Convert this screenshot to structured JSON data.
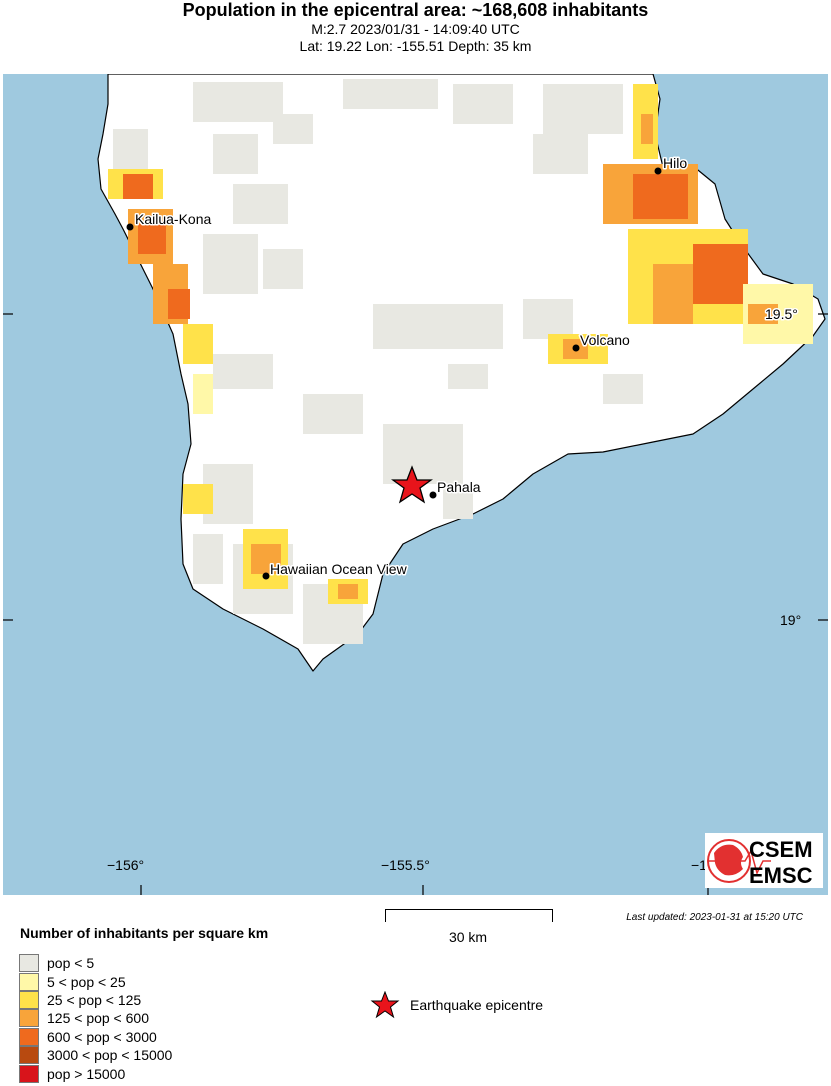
{
  "header": {
    "title": "Population in the epicentral area: ~168,608 inhabitants",
    "event_line": "M:2.7 2023/01/31 - 14:09:40 UTC",
    "location_line": "Lat: 19.22 Lon: -155.51 Depth: 35 km"
  },
  "map": {
    "colors": {
      "ocean": "#9fc9df",
      "land": "#ffffff",
      "coast": "#000000"
    },
    "places": [
      {
        "name": "Kailua-Kona"
      },
      {
        "name": "Hilo"
      },
      {
        "name": "Volcano"
      },
      {
        "name": "Pahala"
      },
      {
        "name": "Hawaiian Ocean View"
      }
    ],
    "lon_ticks": [
      "−156°",
      "−155.5°",
      "−1"
    ],
    "lat_ticks": [
      "19.5°",
      "19°"
    ],
    "epicenter": {
      "lat": 19.22,
      "lon": -155.51,
      "color": "#e8141b",
      "icon": "star-icon"
    }
  },
  "logo": {
    "top": "CSEM",
    "bottom": "EMSC",
    "color": "#e23030"
  },
  "scale": {
    "label": "30 km"
  },
  "updated": "Last updated: 2023-01-31 at 15:20 UTC",
  "legend": {
    "title": "Number of inhabitants per square km",
    "items": [
      {
        "label": "pop < 5",
        "color": "#e8e8e2"
      },
      {
        "label": "5 < pop < 25",
        "color": "#fff8a8"
      },
      {
        "label": "25 < pop < 125",
        "color": "#ffe24a"
      },
      {
        "label": "125 < pop < 600",
        "color": "#f8a43a"
      },
      {
        "label": "600 < pop < 3000",
        "color": "#ef6a1e"
      },
      {
        "label": "3000 < pop < 15000",
        "color": "#b84a10"
      },
      {
        "label": "pop > 15000",
        "color": "#d8141b"
      }
    ],
    "epicentre_label": "Earthquake epicentre"
  }
}
